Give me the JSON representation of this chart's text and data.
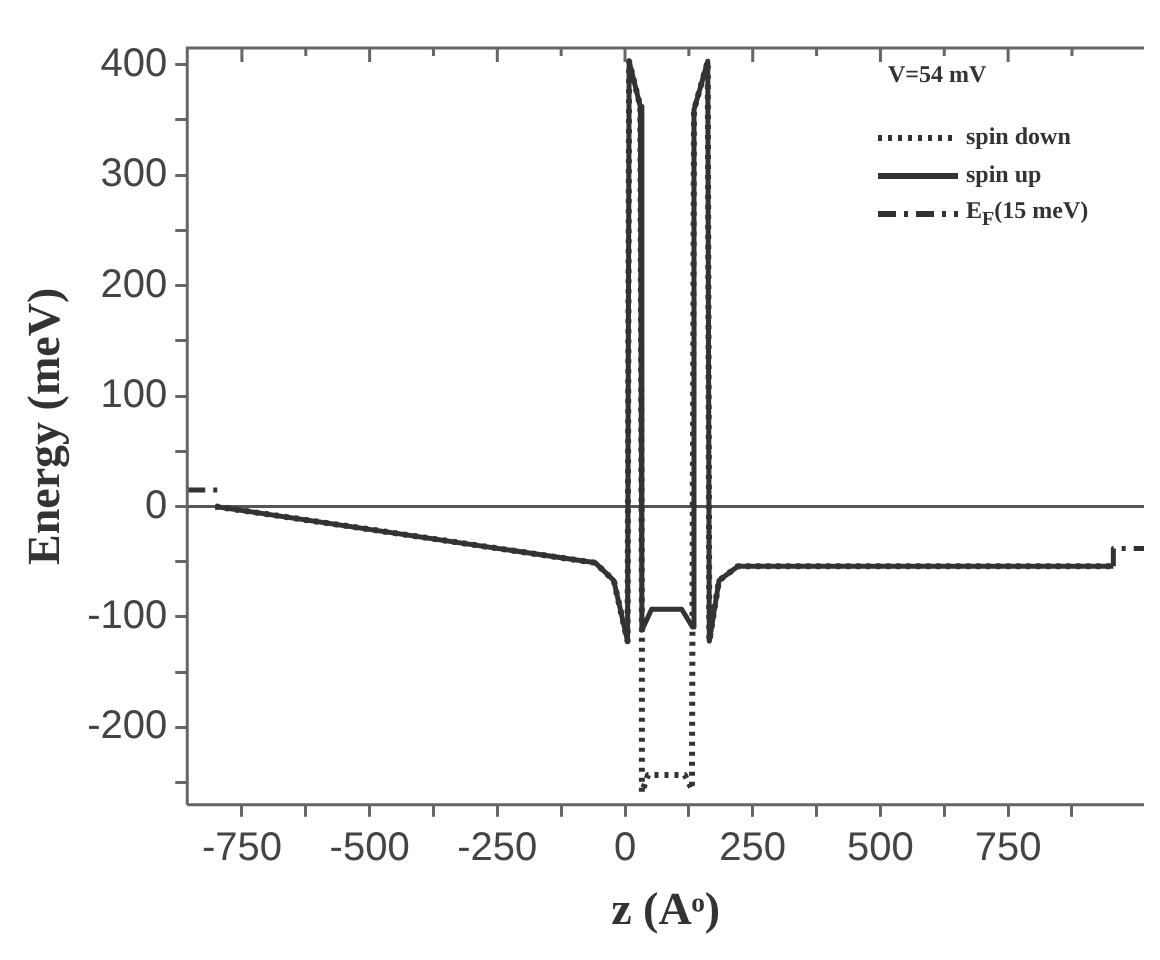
{
  "chart_data": {
    "type": "line",
    "xlabel": "z (Aᵒ)",
    "ylabel": "Energy (meV)",
    "legend_title": "V=54 mV",
    "xlim": [
      -857,
      1016
    ],
    "ylim": [
      -270,
      415
    ],
    "xticks": [
      -750,
      {
        "value": -625,
        "label": null
      },
      -500,
      {
        "value": -375,
        "label": null
      },
      -250,
      {
        "value": -125,
        "label": null
      },
      0,
      {
        "value": 125,
        "label": null
      },
      250,
      {
        "value": 375,
        "label": null
      },
      500,
      {
        "value": 625,
        "label": null
      },
      750,
      {
        "value": 875,
        "label": null
      }
    ],
    "yticks": [
      {
        "value": -250,
        "label": null
      },
      -200,
      {
        "value": -150,
        "label": null
      },
      -100,
      {
        "value": -50,
        "label": null
      },
      0,
      {
        "value": 50,
        "label": null
      },
      100,
      {
        "value": 150,
        "label": null
      },
      200,
      {
        "value": 250,
        "label": null
      },
      300,
      {
        "value": 350,
        "label": null
      },
      400
    ],
    "marker": "none",
    "legend": "top right",
    "ref_lines": [
      {
        "axis": "y",
        "value": 0,
        "color": "#555555",
        "line_style": "solid"
      }
    ],
    "series": [
      {
        "name": "spin down",
        "color": "#333333",
        "line_style": "dotted",
        "x": [
          -802,
          -58,
          -22,
          5,
          8,
          30,
          33,
          33,
          45,
          117,
          131,
          132,
          135,
          162,
          165,
          184,
          221,
          956
        ],
        "values": [
          0,
          -51,
          -67,
          -122,
          403,
          362,
          -112,
          -259,
          -243,
          -243,
          -256,
          -109,
          359,
          403,
          -122,
          -67,
          -54,
          -54
        ]
      },
      {
        "name": "spin up",
        "color": "#333333",
        "line_style": "solid",
        "x": [
          -802,
          -58,
          -22,
          5,
          8,
          30,
          33,
          52,
          111,
          132,
          135,
          162,
          165,
          184,
          221,
          956
        ],
        "values": [
          0,
          -51,
          -67,
          -122,
          403,
          362,
          -112,
          -93,
          -93,
          -109,
          359,
          403,
          -122,
          -67,
          -54,
          -54
        ]
      },
      {
        "name": "E$_{F}$(15 meV)",
        "color": "#333333",
        "line_style": "dashed",
        "x": [
          -857,
          -794
        ],
        "values": [
          15,
          15
        ]
      },
      {
        "color": "#333333",
        "line_style": "dashed",
        "x": [
          956,
          956,
          1016
        ],
        "values": [
          -54,
          -38,
          -38
        ]
      }
    ]
  }
}
